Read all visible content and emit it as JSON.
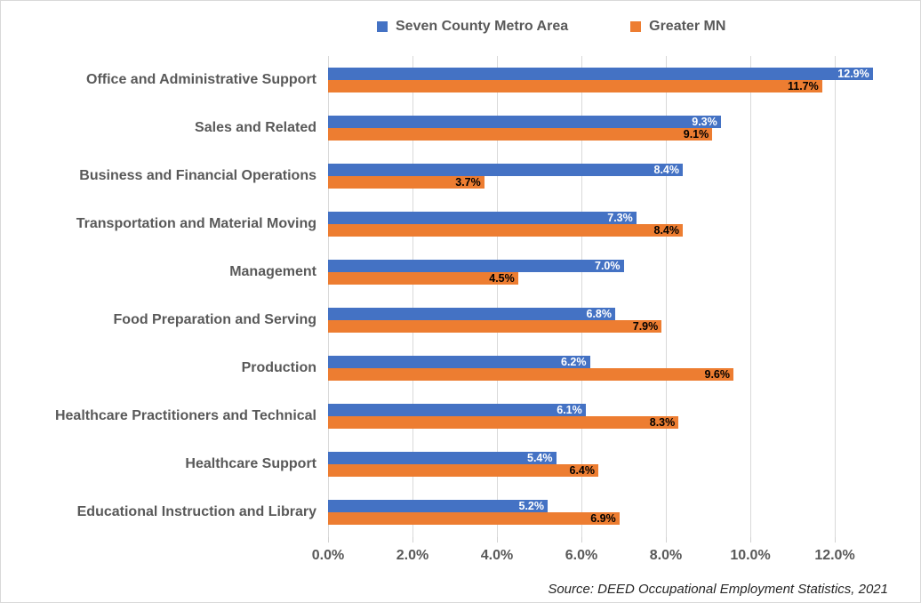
{
  "chart_data": {
    "type": "bar",
    "orientation": "horizontal",
    "title": "",
    "xlabel": "",
    "ylabel": "",
    "xlim": [
      0,
      12.9
    ],
    "grid": true,
    "legend_position": "top",
    "value_suffix": "%",
    "categories": [
      "Office and Administrative Support",
      "Sales and Related",
      "Business and Financial Operations",
      "Transportation and Material Moving",
      "Management",
      "Food Preparation and Serving",
      "Production",
      "Healthcare Practitioners and Technical",
      "Healthcare Support",
      "Educational Instruction and Library"
    ],
    "series": [
      {
        "name": "Seven County Metro Area",
        "color": "#4472C4",
        "label_color": "#FFFFFF",
        "values": [
          12.9,
          9.3,
          8.4,
          7.3,
          7.0,
          6.8,
          6.2,
          6.1,
          5.4,
          5.2
        ],
        "labels": [
          "12.9%",
          "9.3%",
          "8.4%",
          "7.3%",
          "7.0%",
          "6.8%",
          "6.2%",
          "6.1%",
          "5.4%",
          "5.2%"
        ]
      },
      {
        "name": "Greater MN",
        "color": "#ED7D31",
        "label_color": "#000000",
        "values": [
          11.7,
          9.1,
          3.7,
          8.4,
          4.5,
          7.9,
          9.6,
          8.3,
          6.4,
          6.9
        ],
        "labels": [
          "11.7%",
          "9.1%",
          "3.7%",
          "8.4%",
          "4.5%",
          "7.9%",
          "9.6%",
          "8.3%",
          "6.4%",
          "6.9%"
        ]
      }
    ],
    "x_ticks": [
      {
        "value": 0,
        "label": "0.0%"
      },
      {
        "value": 2,
        "label": "2.0%"
      },
      {
        "value": 4,
        "label": "4.0%"
      },
      {
        "value": 6,
        "label": "6.0%"
      },
      {
        "value": 8,
        "label": "8.0%"
      },
      {
        "value": 10,
        "label": "10.0%"
      },
      {
        "value": 12,
        "label": "12.0%"
      }
    ]
  },
  "colors": {
    "series_blue": "#4472C4",
    "series_orange": "#ED7D31",
    "gridline": "#D9D9D9",
    "axis_text": "#595959"
  },
  "source_note": "Source: DEED Occupational Employment Statistics, 2021"
}
